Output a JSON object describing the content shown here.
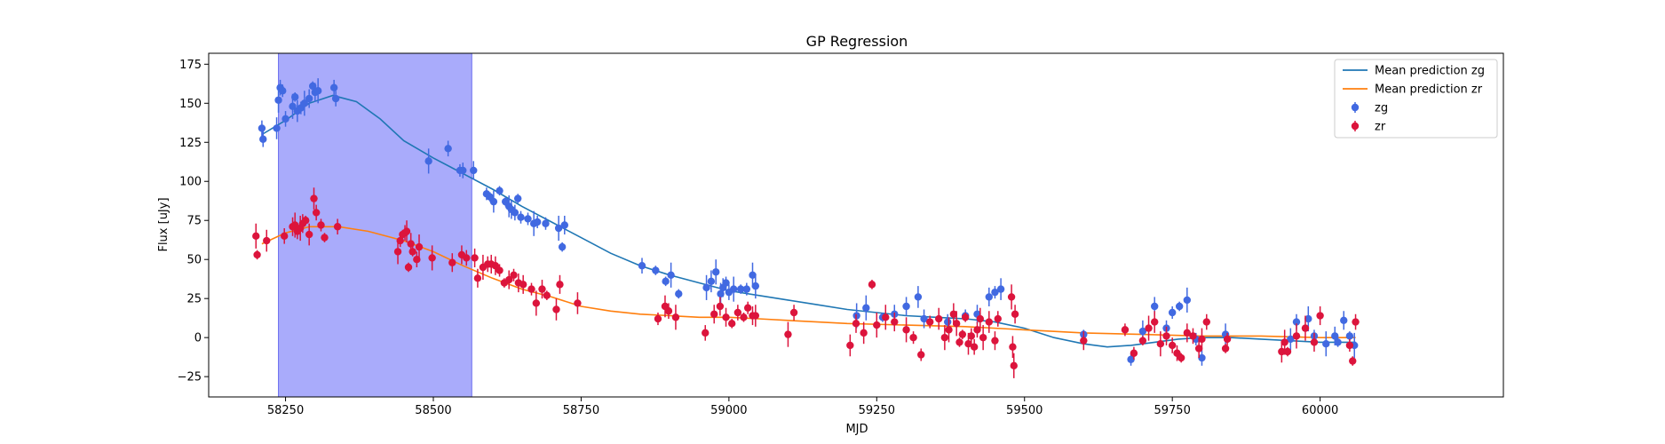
{
  "chart_data": {
    "type": "scatter",
    "title": "GP Regression",
    "xlabel": "MJD",
    "ylabel": "Flux [uJy]",
    "xlim": [
      58120,
      60310
    ],
    "ylim": [
      -38,
      182
    ],
    "xticks": [
      58250,
      58500,
      58750,
      59000,
      59250,
      59500,
      59750,
      60000
    ],
    "yticks": [
      -25,
      0,
      25,
      50,
      75,
      100,
      125,
      150,
      175
    ],
    "grid": false,
    "legend_position": "top-right",
    "shaded_region": {
      "x0": 58238,
      "x1": 58565,
      "color": "#a4a6fb"
    },
    "colors": {
      "zg_points": "#4169e1",
      "zr_points": "#dc143c",
      "zg_line": "#1f77b4",
      "zr_line": "#ff7f0e"
    },
    "legend": [
      {
        "label": "Mean prediction zg",
        "kind": "line",
        "color": "#1f77b4"
      },
      {
        "label": "Mean prediction zr",
        "kind": "line",
        "color": "#ff7f0e"
      },
      {
        "label": "zg",
        "kind": "errorbar",
        "color": "#4169e1"
      },
      {
        "label": "zr",
        "kind": "errorbar",
        "color": "#dc143c"
      }
    ],
    "series": [
      {
        "name": "Mean prediction zg",
        "kind": "line",
        "x": [
          58210,
          58250,
          58290,
          58330,
          58370,
          58410,
          58450,
          58500,
          58550,
          58600,
          58650,
          58700,
          58750,
          58800,
          58850,
          58900,
          58950,
          59000,
          59050,
          59100,
          59150,
          59200,
          59250,
          59300,
          59350,
          59400,
          59450,
          59500,
          59550,
          59600,
          59640,
          59680,
          59720,
          59760,
          59800,
          59850,
          59900,
          59950,
          60000,
          60050,
          60060
        ],
        "y": [
          130,
          139,
          150,
          155,
          151,
          140,
          126,
          115,
          105,
          95,
          84,
          74,
          64,
          54,
          46,
          40,
          35,
          30,
          27,
          24,
          21,
          18,
          16,
          14,
          13,
          12,
          10,
          6,
          0,
          -4,
          -6,
          -5,
          -3,
          -1,
          0,
          0,
          -1,
          -2,
          -3,
          -3,
          -3
        ]
      },
      {
        "name": "Mean prediction zr",
        "kind": "line",
        "x": [
          58210,
          58250,
          58290,
          58340,
          58390,
          58450,
          58500,
          58550,
          58600,
          58650,
          58700,
          58750,
          58800,
          58850,
          58900,
          58950,
          59000,
          59050,
          59100,
          59150,
          59200,
          59300,
          59400,
          59500,
          59600,
          59700,
          59800,
          59900,
          60000,
          60060
        ],
        "y": [
          60,
          67,
          71,
          71,
          68,
          62,
          55,
          46,
          38,
          31,
          26,
          20,
          17,
          15,
          14,
          13,
          13,
          12,
          11,
          10,
          9,
          8,
          7,
          5,
          3,
          2,
          1,
          1,
          0,
          0
        ]
      },
      {
        "name": "zg",
        "kind": "errorbar",
        "x": [
          58210,
          58212,
          58235,
          58238,
          58241,
          58245,
          58250,
          58262,
          58266,
          58270,
          58276,
          58282,
          58290,
          58296,
          58300,
          58305,
          58332,
          58335,
          58492,
          58525,
          58545,
          58550,
          58568,
          58590,
          58596,
          58602,
          58612,
          58622,
          58628,
          58632,
          58638,
          58643,
          58648,
          58660,
          58670,
          58676,
          58690,
          58712,
          58718,
          58722,
          58853,
          58876,
          58893,
          58902,
          58915,
          58962,
          58970,
          58978,
          58986,
          58990,
          58995,
          59000,
          59008,
          59020,
          59030,
          59040,
          59045,
          59216,
          59232,
          59260,
          59280,
          59300,
          59320,
          59330,
          59370,
          59400,
          59420,
          59440,
          59450,
          59460,
          59600,
          59680,
          59700,
          59720,
          59740,
          59750,
          59762,
          59775,
          59790,
          59800,
          59840,
          59950,
          59960,
          59980,
          59990,
          60010,
          60025,
          60030,
          60040,
          60050,
          60058
        ],
        "y": [
          134,
          127,
          134,
          152,
          160,
          158,
          140,
          148,
          154,
          145,
          147,
          150,
          153,
          161,
          157,
          158,
          160,
          153,
          113,
          121,
          107,
          107,
          107,
          92,
          90,
          87,
          94,
          87,
          84,
          82,
          80,
          89,
          77,
          76,
          73,
          74,
          73,
          70,
          58,
          72,
          46,
          43,
          36,
          40,
          28,
          32,
          36,
          42,
          28,
          32,
          35,
          29,
          31,
          31,
          31,
          40,
          33,
          14,
          19,
          13,
          15,
          20,
          26,
          12,
          10,
          14,
          15,
          26,
          29,
          31,
          2,
          -14,
          4,
          20,
          6,
          16,
          20,
          24,
          -1,
          -13,
          2,
          -1,
          10,
          12,
          1,
          -4,
          1,
          -3,
          11,
          1,
          -5
        ]
      },
      {
        "name": "zr",
        "kind": "errorbar",
        "x": [
          58200,
          58202,
          58218,
          58248,
          58262,
          58266,
          58270,
          58275,
          58279,
          58284,
          58290,
          58298,
          58302,
          58310,
          58316,
          58338,
          58440,
          58444,
          58448,
          58452,
          58455,
          58458,
          58462,
          58465,
          58472,
          58476,
          58498,
          58532,
          58548,
          58556,
          58570,
          58575,
          58584,
          58592,
          58598,
          58605,
          58612,
          58620,
          58628,
          58636,
          58644,
          58652,
          58666,
          58674,
          58684,
          58692,
          58708,
          58714,
          58744,
          58880,
          58892,
          58898,
          58910,
          58960,
          58975,
          58985,
          58995,
          59005,
          59015,
          59025,
          59032,
          59040,
          59045,
          59100,
          59110,
          59205,
          59215,
          59228,
          59242,
          59250,
          59265,
          59280,
          59300,
          59312,
          59325,
          59340,
          59355,
          59365,
          59372,
          59380,
          59385,
          59390,
          59395,
          59400,
          59405,
          59410,
          59415,
          59420,
          59425,
          59430,
          59440,
          59450,
          59455,
          59478,
          59480,
          59482,
          59484,
          59600,
          59670,
          59685,
          59700,
          59710,
          59720,
          59730,
          59740,
          59750,
          59758,
          59765,
          59775,
          59785,
          59795,
          59800,
          59808,
          59840,
          59843,
          59935,
          59940,
          59945,
          59960,
          59975,
          59990,
          60000,
          60050,
          60055,
          60060
        ],
        "y": [
          65,
          53,
          62,
          65,
          71,
          72,
          68,
          70,
          73,
          75,
          66,
          89,
          80,
          72,
          64,
          71,
          55,
          62,
          66,
          67,
          68,
          45,
          60,
          55,
          50,
          58,
          51,
          48,
          53,
          51,
          51,
          38,
          45,
          47,
          47,
          46,
          43,
          35,
          37,
          40,
          35,
          34,
          31,
          22,
          31,
          27,
          18,
          34,
          22,
          12,
          20,
          17,
          13,
          3,
          15,
          20,
          13,
          9,
          16,
          13,
          19,
          14,
          14,
          2,
          16,
          -5,
          9,
          3,
          34,
          8,
          13,
          10,
          5,
          0,
          -11,
          10,
          12,
          0,
          5,
          15,
          9,
          -3,
          2,
          13,
          -4,
          1,
          -6,
          5,
          12,
          0,
          10,
          -2,
          12,
          26,
          -6,
          -18,
          15,
          -2,
          5,
          -10,
          -2,
          6,
          10,
          -4,
          1,
          -5,
          -10,
          -13,
          3,
          1,
          -7,
          -1,
          10,
          -7,
          -1,
          -9,
          -3,
          -9,
          1,
          6,
          -3,
          14,
          -5,
          -15,
          10
        ]
      }
    ]
  }
}
